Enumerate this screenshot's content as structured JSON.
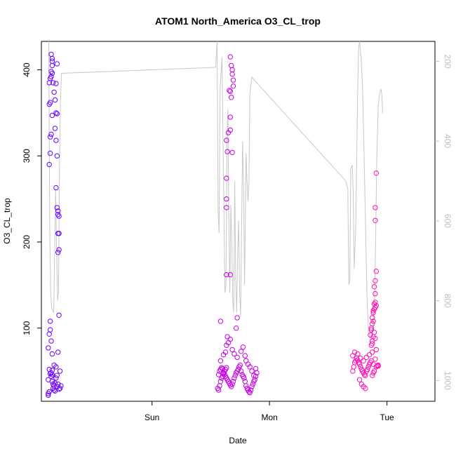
{
  "chart_data": {
    "type": "scatter",
    "title": "ATOM1 North_America O3_CL_trop",
    "xlabel": "Date",
    "ylabel": "O3_CL_trop",
    "x_unit": "hours",
    "xlim": [
      -11.3,
      28.9
    ],
    "ylim": [
      15,
      433
    ],
    "x_ticks": [
      {
        "label": "Sun",
        "value": 0
      },
      {
        "label": "Mon",
        "value": 12
      },
      {
        "label": "Tue",
        "value": 24
      }
    ],
    "y_ticks": [
      100,
      200,
      300,
      400
    ],
    "y2_label": "",
    "y2_lim": [
      1052,
      150
    ],
    "y2_ticks": [
      200,
      400,
      600,
      800,
      1000
    ],
    "grid": false,
    "legend": "none",
    "colors": {
      "segment1": "#6a00ff",
      "segment2": "#c800e6",
      "segment3": "#ff10b4",
      "pressure_line": "#c8c8c8",
      "secondary_axis": "#bebebe"
    },
    "series": [
      {
        "color": "#6a00ff",
        "points": [
          [
            -10.6,
            22
          ],
          [
            -10.6,
            24
          ],
          [
            -10.5,
            26
          ],
          [
            -10.6,
            40
          ],
          [
            -10.5,
            52
          ],
          [
            -10.4,
            47
          ],
          [
            -10.3,
            44
          ],
          [
            -10.2,
            46
          ],
          [
            -10.2,
            38
          ],
          [
            -10.1,
            35
          ],
          [
            -10.0,
            33
          ],
          [
            -9.9,
            36
          ],
          [
            -9.8,
            42
          ],
          [
            -10.1,
            30
          ],
          [
            -10.0,
            28
          ],
          [
            -9.9,
            27
          ],
          [
            -9.7,
            32
          ],
          [
            -9.6,
            35
          ],
          [
            -9.5,
            29
          ],
          [
            -9.4,
            30
          ],
          [
            -9.3,
            33
          ],
          [
            -9.4,
            50
          ],
          [
            -9.8,
            55
          ],
          [
            -10.0,
            57
          ],
          [
            -10.2,
            51
          ],
          [
            -10.3,
            48
          ],
          [
            -9.7,
            45
          ],
          [
            -10.6,
            77
          ],
          [
            -10.5,
            93
          ],
          [
            -10.4,
            98
          ],
          [
            -10.3,
            85
          ],
          [
            -10.2,
            70
          ],
          [
            -9.6,
            72
          ],
          [
            -10.4,
            108
          ],
          [
            -9.5,
            115
          ],
          [
            -10.5,
            290
          ],
          [
            -10.4,
            303
          ],
          [
            -10.4,
            322
          ],
          [
            -10.3,
            325
          ],
          [
            -10.2,
            347
          ],
          [
            -10.5,
            360
          ],
          [
            -10.4,
            362
          ],
          [
            -9.8,
            350
          ],
          [
            -9.7,
            349
          ],
          [
            -9.9,
            332
          ],
          [
            -9.8,
            318
          ],
          [
            -9.7,
            300
          ],
          [
            -9.8,
            263
          ],
          [
            -9.7,
            240
          ],
          [
            -9.6,
            236
          ],
          [
            -9.6,
            232
          ],
          [
            -9.5,
            230
          ],
          [
            -9.6,
            210
          ],
          [
            -9.5,
            210
          ],
          [
            -9.5,
            191
          ],
          [
            -9.6,
            188
          ],
          [
            -10.5,
            385
          ],
          [
            -10.4,
            390
          ],
          [
            -10.3,
            392
          ],
          [
            -10.2,
            396
          ],
          [
            -10.1,
            385
          ],
          [
            -10.0,
            374
          ],
          [
            -9.9,
            365
          ],
          [
            -9.8,
            384
          ],
          [
            -9.7,
            407
          ],
          [
            -10.3,
            398
          ],
          [
            -10.2,
            405
          ],
          [
            -10.2,
            410
          ],
          [
            -10.3,
            418
          ],
          [
            -10.2,
            413
          ]
        ]
      },
      {
        "color": "#c800e6",
        "points": [
          [
            6.7,
            30
          ],
          [
            6.8,
            28
          ],
          [
            6.9,
            33
          ],
          [
            7.0,
            38
          ],
          [
            7.1,
            42
          ],
          [
            7.2,
            44
          ],
          [
            7.3,
            47
          ],
          [
            7.4,
            50
          ],
          [
            7.5,
            52
          ],
          [
            7.6,
            54
          ],
          [
            6.8,
            46
          ],
          [
            6.9,
            50
          ],
          [
            7.0,
            52
          ],
          [
            7.1,
            54
          ],
          [
            7.2,
            53
          ],
          [
            7.3,
            48
          ],
          [
            7.4,
            46
          ],
          [
            7.5,
            44
          ],
          [
            7.6,
            42
          ],
          [
            7.7,
            40
          ],
          [
            7.8,
            38
          ],
          [
            7.9,
            36
          ],
          [
            8.0,
            34
          ],
          [
            8.1,
            32
          ],
          [
            8.2,
            35
          ],
          [
            8.3,
            38
          ],
          [
            8.4,
            42
          ],
          [
            8.5,
            45
          ],
          [
            8.6,
            48
          ],
          [
            8.7,
            50
          ],
          [
            8.8,
            52
          ],
          [
            8.9,
            55
          ],
          [
            9.0,
            57
          ],
          [
            9.1,
            50
          ],
          [
            9.2,
            46
          ],
          [
            9.3,
            44
          ],
          [
            9.4,
            42
          ],
          [
            9.5,
            38
          ],
          [
            9.6,
            33
          ],
          [
            9.7,
            30
          ],
          [
            9.8,
            28
          ],
          [
            9.9,
            26
          ],
          [
            10.0,
            25
          ],
          [
            10.1,
            28
          ],
          [
            10.2,
            32
          ],
          [
            10.3,
            35
          ],
          [
            10.4,
            38
          ],
          [
            10.5,
            40
          ],
          [
            10.6,
            44
          ],
          [
            10.7,
            48
          ],
          [
            7.0,
            62
          ],
          [
            7.3,
            69
          ],
          [
            7.5,
            72
          ],
          [
            7.6,
            80
          ],
          [
            7.8,
            83
          ],
          [
            8.0,
            87
          ],
          [
            8.2,
            75
          ],
          [
            8.4,
            70
          ],
          [
            8.7,
            66
          ],
          [
            9.1,
            73
          ],
          [
            9.3,
            78
          ],
          [
            9.5,
            68
          ],
          [
            9.6,
            62
          ],
          [
            9.8,
            58
          ],
          [
            10.0,
            55
          ],
          [
            10.2,
            50
          ],
          [
            10.4,
            45
          ],
          [
            10.6,
            53
          ],
          [
            7.0,
            108
          ],
          [
            7.7,
            90
          ],
          [
            8.6,
            100
          ],
          [
            8.7,
            112
          ],
          [
            7.6,
            162
          ],
          [
            8.0,
            162
          ],
          [
            7.6,
            240
          ],
          [
            7.6,
            250
          ],
          [
            7.6,
            274
          ],
          [
            7.7,
            305
          ],
          [
            7.6,
            318
          ],
          [
            7.8,
            327
          ],
          [
            8.0,
            330
          ],
          [
            8.2,
            304
          ],
          [
            8.1,
            368
          ],
          [
            8.0,
            375
          ],
          [
            7.9,
            376
          ],
          [
            8.0,
            345
          ],
          [
            8.2,
            395
          ],
          [
            8.2,
            400
          ],
          [
            8.1,
            405
          ],
          [
            8.3,
            388
          ],
          [
            8.3,
            381
          ],
          [
            8.0,
            415
          ]
        ]
      },
      {
        "color": "#ff10b4",
        "points": [
          [
            20.5,
            50
          ],
          [
            20.6,
            55
          ],
          [
            20.7,
            60
          ],
          [
            20.8,
            62
          ],
          [
            20.9,
            65
          ],
          [
            21.0,
            63
          ],
          [
            21.1,
            60
          ],
          [
            21.2,
            58
          ],
          [
            21.3,
            55
          ],
          [
            21.4,
            52
          ],
          [
            21.5,
            50
          ],
          [
            21.6,
            48
          ],
          [
            21.7,
            46
          ],
          [
            21.8,
            45
          ],
          [
            21.9,
            50
          ],
          [
            22.0,
            52
          ],
          [
            22.1,
            55
          ],
          [
            22.2,
            58
          ],
          [
            22.3,
            60
          ],
          [
            22.4,
            62
          ],
          [
            20.5,
            68
          ],
          [
            20.7,
            72
          ],
          [
            21.0,
            70
          ],
          [
            21.3,
            65
          ],
          [
            21.6,
            62
          ],
          [
            21.9,
            66
          ],
          [
            22.2,
            69
          ],
          [
            22.5,
            72
          ],
          [
            22.8,
            64
          ],
          [
            23.1,
            56
          ],
          [
            21.2,
            40
          ],
          [
            21.4,
            35
          ],
          [
            21.6,
            32
          ],
          [
            21.8,
            30
          ],
          [
            22.9,
            55
          ],
          [
            23.0,
            56
          ],
          [
            23.1,
            57
          ],
          [
            22.7,
            50
          ],
          [
            22.6,
            48
          ],
          [
            22.5,
            45
          ],
          [
            22.6,
            58
          ],
          [
            22.4,
            80
          ],
          [
            22.5,
            85
          ],
          [
            22.6,
            90
          ],
          [
            22.7,
            95
          ],
          [
            22.4,
            100
          ],
          [
            22.5,
            105
          ],
          [
            22.6,
            108
          ],
          [
            22.5,
            112
          ],
          [
            22.6,
            118
          ],
          [
            22.7,
            122
          ],
          [
            22.8,
            124
          ],
          [
            22.9,
            126
          ],
          [
            22.7,
            128
          ],
          [
            22.8,
            130
          ],
          [
            22.8,
            140
          ],
          [
            22.7,
            148
          ],
          [
            22.8,
            155
          ],
          [
            22.9,
            166
          ],
          [
            22.6,
            120
          ],
          [
            22.4,
            98
          ],
          [
            22.3,
            92
          ],
          [
            22.5,
            82
          ],
          [
            22.8,
            88
          ],
          [
            22.9,
            75
          ],
          [
            22.8,
            225
          ],
          [
            22.8,
            240
          ],
          [
            22.9,
            280
          ]
        ]
      }
    ],
    "pressure_series": {
      "axis": "secondary",
      "points": [
        [
          -10.55,
          150
        ],
        [
          -10.45,
          620
        ],
        [
          -10.35,
          780
        ],
        [
          -10.25,
          820
        ],
        [
          -10.05,
          830
        ],
        [
          -9.95,
          700
        ],
        [
          -9.85,
          520
        ],
        [
          -9.65,
          800
        ],
        [
          -9.55,
          780
        ],
        [
          -9.45,
          460
        ],
        [
          -9.35,
          300
        ],
        [
          -9.25,
          230
        ],
        [
          6.5,
          215
        ],
        [
          6.65,
          150
        ],
        [
          6.75,
          580
        ],
        [
          6.85,
          630
        ],
        [
          6.95,
          270
        ],
        [
          7.15,
          190
        ],
        [
          7.35,
          600
        ],
        [
          7.45,
          780
        ],
        [
          7.55,
          760
        ],
        [
          7.65,
          400
        ],
        [
          7.75,
          320
        ],
        [
          7.85,
          600
        ],
        [
          7.95,
          780
        ],
        [
          8.05,
          560
        ],
        [
          8.15,
          650
        ],
        [
          8.25,
          800
        ],
        [
          8.35,
          830
        ],
        [
          8.45,
          500
        ],
        [
          8.55,
          750
        ],
        [
          8.65,
          830
        ],
        [
          8.75,
          680
        ],
        [
          8.85,
          600
        ],
        [
          8.95,
          780
        ],
        [
          9.05,
          840
        ],
        [
          9.15,
          610
        ],
        [
          9.25,
          400
        ],
        [
          9.35,
          520
        ],
        [
          9.45,
          760
        ],
        [
          9.55,
          560
        ],
        [
          9.6,
          430
        ],
        [
          9.7,
          500
        ],
        [
          9.8,
          550
        ],
        [
          9.9,
          500
        ],
        [
          10.0,
          280
        ],
        [
          10.2,
          240
        ],
        [
          19.8,
          500
        ],
        [
          20.0,
          520
        ],
        [
          20.1,
          760
        ],
        [
          20.2,
          750
        ],
        [
          20.3,
          470
        ],
        [
          20.45,
          460
        ],
        [
          20.55,
          530
        ],
        [
          20.65,
          720
        ],
        [
          20.8,
          620
        ],
        [
          21.0,
          280
        ],
        [
          21.1,
          170
        ],
        [
          21.2,
          150
        ],
        [
          21.35,
          190
        ],
        [
          21.5,
          260
        ],
        [
          21.65,
          420
        ],
        [
          21.8,
          600
        ],
        [
          21.95,
          780
        ],
        [
          22.1,
          870
        ],
        [
          22.3,
          900
        ],
        [
          22.5,
          890
        ],
        [
          22.65,
          830
        ],
        [
          22.75,
          780
        ],
        [
          22.85,
          630
        ],
        [
          22.95,
          450
        ],
        [
          23.1,
          310
        ],
        [
          23.25,
          280
        ],
        [
          23.4,
          270
        ],
        [
          23.5,
          290
        ],
        [
          23.55,
          330
        ]
      ]
    }
  }
}
